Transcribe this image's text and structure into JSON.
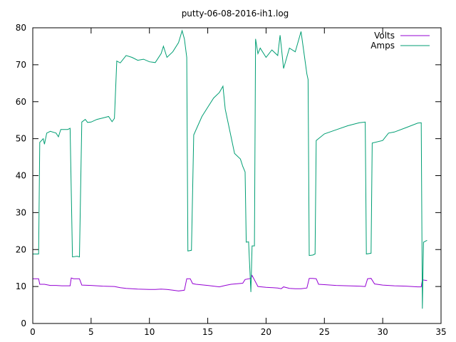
{
  "chart_data": {
    "type": "line",
    "title": "putty-06-08-2016-ih1.log",
    "xlabel": "",
    "ylabel": "",
    "xlim": [
      0,
      35
    ],
    "ylim": [
      0,
      80
    ],
    "xticks": [
      0,
      5,
      10,
      15,
      20,
      25,
      30,
      35
    ],
    "yticks": [
      0,
      10,
      20,
      30,
      40,
      50,
      60,
      70,
      80
    ],
    "grid": false,
    "legend_position": "top-right",
    "series": [
      {
        "name": "Volts",
        "color": "#9400d3",
        "points": [
          [
            0.0,
            12.1
          ],
          [
            0.5,
            12.1
          ],
          [
            0.6,
            10.6
          ],
          [
            1.0,
            10.6
          ],
          [
            1.5,
            10.3
          ],
          [
            2.0,
            10.3
          ],
          [
            2.5,
            10.2
          ],
          [
            3.2,
            10.2
          ],
          [
            3.3,
            12.3
          ],
          [
            3.5,
            12.1
          ],
          [
            4.0,
            12.1
          ],
          [
            4.2,
            10.4
          ],
          [
            5.0,
            10.3
          ],
          [
            6.0,
            10.1
          ],
          [
            7.0,
            10.0
          ],
          [
            7.5,
            9.7
          ],
          [
            8.0,
            9.5
          ],
          [
            9.0,
            9.3
          ],
          [
            10.0,
            9.2
          ],
          [
            10.5,
            9.2
          ],
          [
            11.0,
            9.3
          ],
          [
            11.5,
            9.2
          ],
          [
            12.0,
            9.0
          ],
          [
            12.5,
            8.8
          ],
          [
            13.0,
            9.0
          ],
          [
            13.2,
            12.1
          ],
          [
            13.5,
            12.1
          ],
          [
            13.7,
            10.8
          ],
          [
            14.0,
            10.6
          ],
          [
            15.0,
            10.3
          ],
          [
            16.0,
            9.9
          ],
          [
            16.5,
            10.3
          ],
          [
            17.0,
            10.6
          ],
          [
            18.0,
            10.9
          ],
          [
            18.2,
            11.9
          ],
          [
            18.7,
            12.2
          ],
          [
            18.8,
            13.0
          ],
          [
            19.0,
            11.8
          ],
          [
            19.3,
            10.0
          ],
          [
            20.0,
            9.8
          ],
          [
            21.0,
            9.6
          ],
          [
            21.3,
            9.4
          ],
          [
            21.5,
            9.9
          ],
          [
            22.0,
            9.5
          ],
          [
            22.5,
            9.4
          ],
          [
            23.0,
            9.4
          ],
          [
            23.5,
            9.6
          ],
          [
            23.7,
            12.2
          ],
          [
            24.0,
            12.2
          ],
          [
            24.3,
            12.1
          ],
          [
            24.5,
            10.6
          ],
          [
            25.0,
            10.5
          ],
          [
            26.0,
            10.3
          ],
          [
            27.0,
            10.2
          ],
          [
            28.0,
            10.1
          ],
          [
            28.5,
            10.0
          ],
          [
            28.7,
            12.1
          ],
          [
            29.0,
            12.2
          ],
          [
            29.3,
            10.7
          ],
          [
            30.0,
            10.4
          ],
          [
            31.0,
            10.2
          ],
          [
            32.0,
            10.1
          ],
          [
            33.0,
            9.9
          ],
          [
            33.3,
            9.9
          ],
          [
            33.4,
            11.8
          ],
          [
            33.8,
            11.6
          ]
        ]
      },
      {
        "name": "Amps",
        "color": "#009e73",
        "points": [
          [
            0.0,
            18.8
          ],
          [
            0.5,
            18.8
          ],
          [
            0.6,
            49.0
          ],
          [
            0.9,
            50.0
          ],
          [
            1.0,
            48.5
          ],
          [
            1.2,
            51.5
          ],
          [
            1.5,
            52.0
          ],
          [
            2.0,
            51.5
          ],
          [
            2.2,
            50.5
          ],
          [
            2.4,
            52.5
          ],
          [
            3.0,
            52.5
          ],
          [
            3.2,
            52.8
          ],
          [
            3.4,
            18.0
          ],
          [
            3.8,
            18.2
          ],
          [
            4.0,
            18.0
          ],
          [
            4.2,
            54.5
          ],
          [
            4.5,
            55.2
          ],
          [
            4.7,
            54.4
          ],
          [
            5.0,
            54.5
          ],
          [
            5.5,
            55.2
          ],
          [
            6.0,
            55.6
          ],
          [
            6.5,
            56.0
          ],
          [
            6.8,
            54.6
          ],
          [
            7.0,
            55.5
          ],
          [
            7.2,
            71.0
          ],
          [
            7.5,
            70.5
          ],
          [
            8.0,
            72.5
          ],
          [
            8.5,
            72.0
          ],
          [
            9.0,
            71.2
          ],
          [
            9.5,
            71.5
          ],
          [
            10.0,
            70.8
          ],
          [
            10.5,
            70.6
          ],
          [
            11.0,
            73.0
          ],
          [
            11.2,
            75.0
          ],
          [
            11.5,
            72.0
          ],
          [
            12.0,
            73.5
          ],
          [
            12.5,
            76.0
          ],
          [
            12.8,
            79.2
          ],
          [
            13.0,
            77.0
          ],
          [
            13.2,
            72.0
          ],
          [
            13.3,
            19.6
          ],
          [
            13.6,
            19.8
          ],
          [
            13.8,
            51.0
          ],
          [
            14.5,
            56.0
          ],
          [
            15.0,
            58.5
          ],
          [
            15.5,
            61.0
          ],
          [
            16.0,
            62.5
          ],
          [
            16.3,
            64.2
          ],
          [
            16.5,
            58.0
          ],
          [
            17.0,
            50.5
          ],
          [
            17.3,
            46.0
          ],
          [
            17.8,
            44.5
          ],
          [
            18.0,
            42.5
          ],
          [
            18.2,
            41.0
          ],
          [
            18.3,
            22.0
          ],
          [
            18.5,
            22.1
          ],
          [
            18.7,
            8.5
          ],
          [
            18.8,
            21.0
          ],
          [
            19.0,
            21.0
          ],
          [
            19.1,
            77.0
          ],
          [
            19.3,
            73.0
          ],
          [
            19.5,
            74.5
          ],
          [
            20.0,
            72.0
          ],
          [
            20.5,
            74.0
          ],
          [
            21.0,
            72.5
          ],
          [
            21.2,
            78.0
          ],
          [
            21.5,
            69.0
          ],
          [
            22.0,
            74.5
          ],
          [
            22.5,
            73.5
          ],
          [
            23.0,
            79.0
          ],
          [
            23.3,
            72.0
          ],
          [
            23.5,
            67.5
          ],
          [
            23.6,
            66.0
          ],
          [
            23.7,
            18.4
          ],
          [
            24.0,
            18.5
          ],
          [
            24.2,
            18.8
          ],
          [
            24.3,
            49.5
          ],
          [
            25.0,
            51.3
          ],
          [
            26.0,
            52.4
          ],
          [
            27.0,
            53.5
          ],
          [
            28.0,
            54.3
          ],
          [
            28.5,
            54.5
          ],
          [
            28.6,
            18.8
          ],
          [
            29.0,
            19.0
          ],
          [
            29.1,
            48.8
          ],
          [
            30.0,
            49.5
          ],
          [
            30.5,
            51.5
          ],
          [
            31.0,
            51.8
          ],
          [
            32.0,
            53.0
          ],
          [
            33.0,
            54.2
          ],
          [
            33.3,
            54.3
          ],
          [
            33.4,
            4.0
          ],
          [
            33.5,
            22.0
          ],
          [
            33.8,
            22.5
          ]
        ]
      }
    ]
  }
}
